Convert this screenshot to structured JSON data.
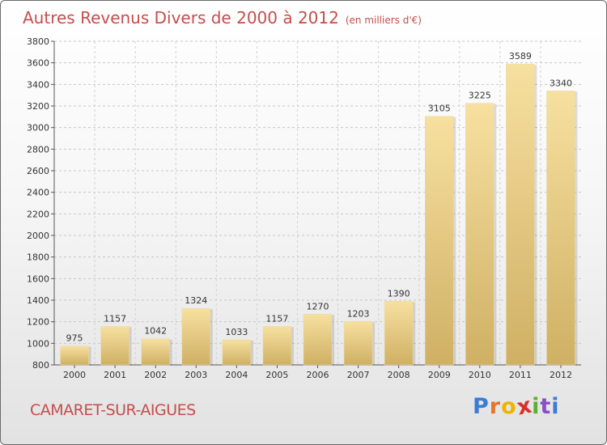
{
  "chart_data": {
    "type": "bar",
    "title": "Autres Revenus Divers de 2000 à 2012",
    "subtitle": "(en milliers d'€)",
    "categories": [
      "2000",
      "2001",
      "2002",
      "2003",
      "2004",
      "2005",
      "2006",
      "2007",
      "2008",
      "2009",
      "2010",
      "2011",
      "2012"
    ],
    "values": [
      975,
      1157,
      1042,
      1324,
      1033,
      1157,
      1270,
      1203,
      1390,
      3105,
      3225,
      3589,
      3340
    ],
    "ylim": [
      800,
      3800
    ],
    "yticks": [
      800,
      1000,
      1200,
      1400,
      1600,
      1800,
      2000,
      2200,
      2400,
      2600,
      2800,
      3000,
      3200,
      3400,
      3600,
      3800
    ],
    "xlabel": "",
    "ylabel": "",
    "grid": true,
    "bar_color": "#e8cf85",
    "text_color": "#c54d4d"
  },
  "footer": {
    "place": "CAMARET-SUR-AIGUES",
    "brand": "Proxiti",
    "brand_colors": [
      "#3a7bd5",
      "#e8732a",
      "#f0b400",
      "#d7302a",
      "#5cb030",
      "#8a4fc2",
      "#3a7bd5"
    ]
  }
}
